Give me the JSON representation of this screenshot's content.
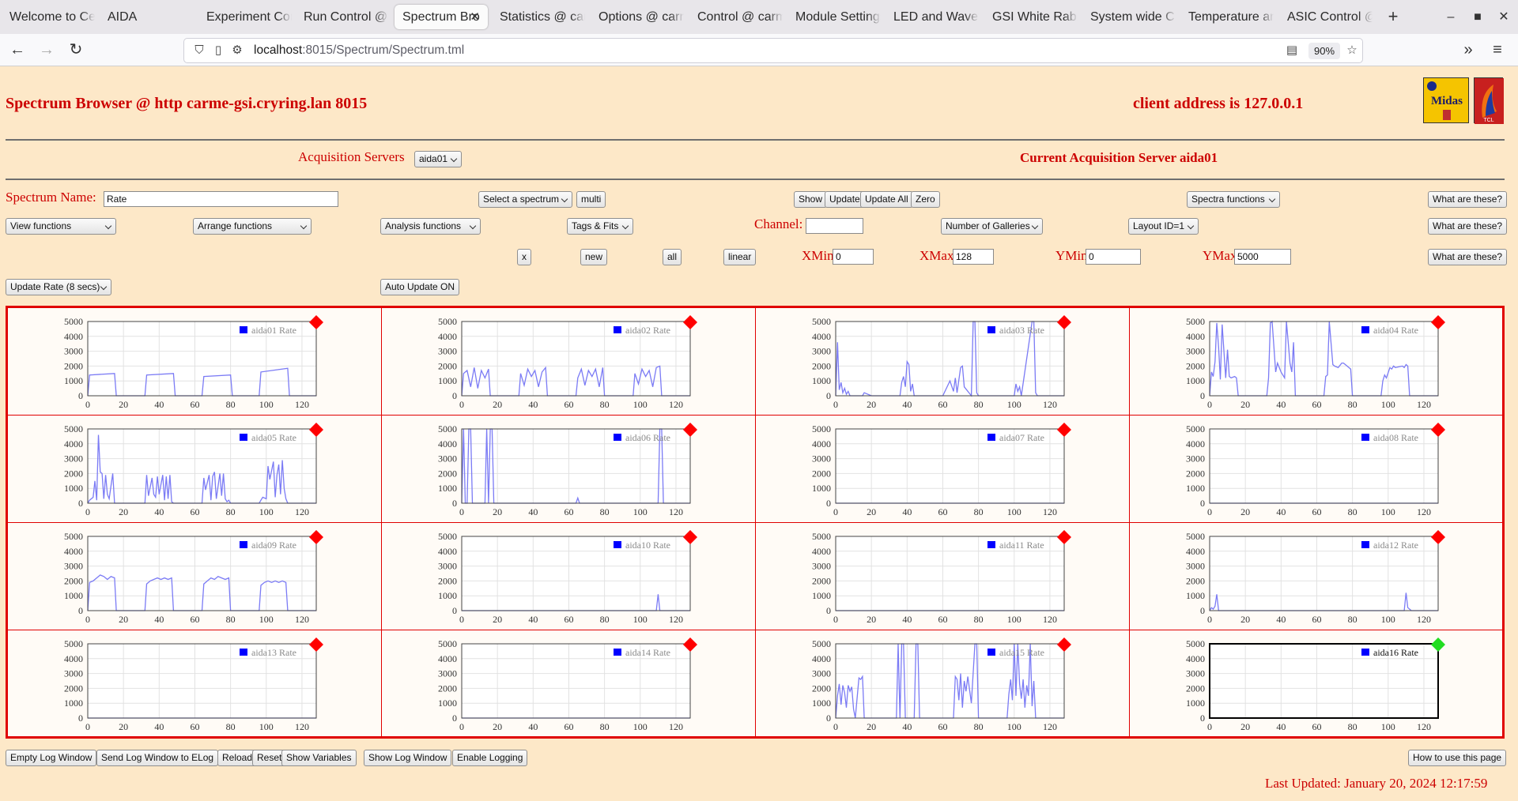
{
  "browser": {
    "tabs": [
      {
        "label": "Welcome to Ce",
        "active": false
      },
      {
        "label": "AIDA",
        "active": false
      },
      {
        "label": "Experiment Con",
        "active": false
      },
      {
        "label": "Run Control @",
        "active": false
      },
      {
        "label": "Spectrum Bro",
        "active": true
      },
      {
        "label": "Statistics @ car",
        "active": false
      },
      {
        "label": "Options @ carm",
        "active": false
      },
      {
        "label": "Control @ carm",
        "active": false
      },
      {
        "label": "Module Settings",
        "active": false
      },
      {
        "label": "LED and Wavefo",
        "active": false
      },
      {
        "label": "GSI White Rabb",
        "active": false
      },
      {
        "label": "System wide Ch",
        "active": false
      },
      {
        "label": "Temperature an",
        "active": false
      },
      {
        "label": "ASIC Control @",
        "active": false
      }
    ],
    "url_host": "localhost",
    "url_rest": ":8015/Spectrum/Spectrum.tml",
    "zoom": "90%"
  },
  "header": {
    "title": "Spectrum Browser @ http carme-gsi.cryring.lan 8015",
    "client_address": "client address is 127.0.0.1",
    "logo_text": "Midas",
    "logo2_text": "TCL"
  },
  "servers": {
    "label": "Acquisition Servers",
    "selected": "aida01",
    "current": "Current Acquisition Server aida01"
  },
  "controls": {
    "spectrum_name_label": "Spectrum Name:",
    "spectrum_name_value": "Rate",
    "select_spectrum": "Select a spectrum",
    "multi": "multi",
    "show": "Show",
    "update": "Update",
    "update_all": "Update All",
    "zero": "Zero",
    "spectra_functions": "Spectra functions",
    "what": "What are these?",
    "view_functions": "View functions",
    "arrange_functions": "Arrange functions",
    "analysis_functions": "Analysis functions",
    "tags_fits": "Tags & Fits",
    "channel_label": "Channel:",
    "channel_value": "",
    "number_of_galleries": "Number of Galleries",
    "layout_id": "Layout ID=1",
    "x_btn": "x",
    "new_btn": "new",
    "all_btn": "all",
    "linear_btn": "linear",
    "xmin_label": "XMin",
    "xmin_value": "0",
    "xmax_label": "XMax",
    "xmax_value": "128",
    "ymin_label": "YMin",
    "ymin_value": "0",
    "ymax_label": "YMax",
    "ymax_value": "5000",
    "update_rate": "Update Rate (8 secs)",
    "auto_update": "Auto Update ON"
  },
  "toolbar_icons": [
    "radiation-icon",
    "refresh-icon",
    "zoom-in-icon",
    "zoom-out-icon",
    "expand-y-icon",
    "shrink-y-icon",
    "arrow-left-icon",
    "arrow-right-icon",
    "arrow-up-icon",
    "arrow-down-icon"
  ],
  "footer": {
    "buttons": [
      "Empty Log Window",
      "Send Log Window to ELog",
      "Reload",
      "Reset",
      "Show Variables",
      "Show Log Window",
      "Enable Logging"
    ],
    "how_to": "How to use this page",
    "last_updated": "Last Updated: January 20, 2024 12:17:59"
  },
  "colors": {
    "page_bg": "#fde8c8",
    "accent_red": "#cc0000",
    "series_blue": "#7b7bf5",
    "legend_blue": "#0000ff",
    "status_red": "#ff0000",
    "status_green": "#22dd22"
  },
  "chart_data": [
    {
      "type": "line",
      "legend": "aida01 Rate",
      "status": "red",
      "xlim": [
        0,
        128
      ],
      "ylim": [
        0,
        5000
      ],
      "x_ticks": [
        0,
        20,
        40,
        60,
        80,
        100,
        120
      ],
      "y_ticks": [
        0,
        1000,
        2000,
        3000,
        4000,
        5000
      ],
      "x": [
        0,
        1,
        15,
        16,
        32,
        33,
        48,
        49,
        64,
        65,
        80,
        81,
        96,
        97,
        112,
        113,
        128
      ],
      "values": [
        0,
        1400,
        1500,
        0,
        0,
        1400,
        1500,
        0,
        0,
        1300,
        1400,
        0,
        0,
        1600,
        1850,
        0,
        0
      ]
    },
    {
      "type": "line",
      "legend": "aida02 Rate",
      "status": "red",
      "xlim": [
        0,
        128
      ],
      "ylim": [
        0,
        5000
      ],
      "x_ticks": [
        0,
        20,
        40,
        60,
        80,
        100,
        120
      ],
      "y_ticks": [
        0,
        1000,
        2000,
        3000,
        4000,
        5000
      ],
      "x": [
        0,
        1,
        3,
        5,
        7,
        9,
        11,
        13,
        15,
        16,
        32,
        33,
        35,
        37,
        39,
        41,
        43,
        45,
        47,
        48,
        64,
        65,
        67,
        69,
        71,
        73,
        75,
        77,
        79,
        80,
        96,
        97,
        99,
        101,
        103,
        105,
        107,
        109,
        111,
        112,
        128
      ],
      "values": [
        0,
        1500,
        1700,
        600,
        1900,
        500,
        1700,
        1200,
        1800,
        0,
        0,
        1500,
        700,
        1800,
        1300,
        1700,
        600,
        1600,
        1900,
        0,
        0,
        1200,
        1800,
        700,
        1700,
        1300,
        1800,
        600,
        1900,
        0,
        0,
        1500,
        800,
        1800,
        1300,
        1700,
        600,
        1900,
        2000,
        0,
        0
      ]
    },
    {
      "type": "line",
      "legend": "aida03 Rate",
      "status": "red",
      "xlim": [
        0,
        128
      ],
      "ylim": [
        0,
        5000
      ],
      "x_ticks": [
        0,
        20,
        40,
        60,
        80,
        100,
        120
      ],
      "y_ticks": [
        0,
        1000,
        2000,
        3000,
        4000,
        5000
      ],
      "x": [
        0,
        1,
        2,
        3,
        4,
        5,
        6,
        7,
        8,
        15,
        16,
        20,
        36,
        37,
        38,
        39,
        40,
        41,
        42,
        43,
        44,
        60,
        64,
        66,
        67,
        68,
        70,
        71,
        72,
        76,
        77,
        78,
        79,
        80,
        81,
        84,
        100,
        101,
        102,
        103,
        104,
        110,
        111,
        112,
        113,
        128
      ],
      "values": [
        0,
        3600,
        400,
        900,
        200,
        500,
        100,
        300,
        0,
        0,
        200,
        0,
        0,
        900,
        1300,
        600,
        2300,
        2100,
        300,
        800,
        0,
        0,
        1000,
        300,
        1200,
        200,
        1900,
        2000,
        600,
        0,
        5000,
        5000,
        200,
        0,
        0,
        0,
        0,
        800,
        300,
        600,
        0,
        5000,
        5000,
        200,
        0,
        0
      ]
    },
    {
      "type": "line",
      "legend": "aida04 Rate",
      "status": "red",
      "xlim": [
        0,
        128
      ],
      "ylim": [
        0,
        5000
      ],
      "x_ticks": [
        0,
        20,
        40,
        60,
        80,
        100,
        120
      ],
      "y_ticks": [
        0,
        1000,
        2000,
        3000,
        4000,
        5000
      ],
      "x": [
        0,
        1,
        2,
        3,
        4,
        5,
        6,
        7,
        9,
        10,
        11,
        12,
        14,
        15,
        16,
        32,
        33,
        34,
        35,
        37,
        38,
        40,
        42,
        43,
        45,
        46,
        47,
        48,
        64,
        65,
        66,
        67,
        69,
        70,
        72,
        74,
        75,
        78,
        79,
        80,
        96,
        97,
        98,
        99,
        101,
        102,
        103,
        104,
        108,
        109,
        110,
        111,
        112,
        128
      ],
      "values": [
        0,
        1600,
        1300,
        2300,
        4900,
        3300,
        1100,
        4800,
        1200,
        3100,
        1300,
        1200,
        1300,
        1200,
        0,
        0,
        1200,
        4900,
        5000,
        1600,
        2200,
        1600,
        1200,
        5000,
        2200,
        1600,
        3600,
        0,
        0,
        1300,
        1400,
        5000,
        2100,
        2000,
        1900,
        2200,
        2200,
        1900,
        1800,
        0,
        0,
        1000,
        1400,
        1200,
        1900,
        1800,
        2000,
        1900,
        2000,
        1900,
        2100,
        2000,
        0,
        0
      ]
    },
    {
      "type": "line",
      "legend": "aida05 Rate",
      "status": "red",
      "xlim": [
        0,
        128
      ],
      "ylim": [
        0,
        5000
      ],
      "x_ticks": [
        0,
        20,
        40,
        60,
        80,
        100,
        120
      ],
      "y_ticks": [
        0,
        1000,
        2000,
        3000,
        4000,
        5000
      ],
      "x": [
        0,
        1,
        3,
        4,
        5,
        6,
        7,
        8,
        9,
        10,
        11,
        12,
        14,
        15,
        16,
        32,
        33,
        34,
        36,
        37,
        38,
        39,
        40,
        42,
        43,
        44,
        45,
        46,
        47,
        48,
        64,
        65,
        66,
        68,
        69,
        70,
        71,
        72,
        74,
        75,
        76,
        77,
        78,
        79,
        80,
        96,
        97,
        98,
        100,
        101,
        102,
        104,
        105,
        106,
        107,
        108,
        109,
        110,
        111,
        112,
        128
      ],
      "values": [
        0,
        200,
        400,
        1500,
        200,
        4600,
        2100,
        2000,
        300,
        1900,
        600,
        300,
        2000,
        0,
        0,
        0,
        1900,
        500,
        1700,
        600,
        400,
        1800,
        600,
        1900,
        200,
        1800,
        300,
        1900,
        100,
        0,
        0,
        1700,
        900,
        1900,
        200,
        1800,
        2100,
        300,
        2000,
        500,
        2000,
        300,
        100,
        200,
        0,
        0,
        200,
        400,
        300,
        2500,
        1600,
        2800,
        400,
        1900,
        2600,
        600,
        2900,
        1000,
        300,
        0,
        0
      ]
    },
    {
      "type": "line",
      "legend": "aida06 Rate",
      "status": "red",
      "xlim": [
        0,
        128
      ],
      "ylim": [
        0,
        5000
      ],
      "x_ticks": [
        0,
        20,
        40,
        60,
        80,
        100,
        120
      ],
      "y_ticks": [
        0,
        1000,
        2000,
        3000,
        4000,
        5000
      ],
      "x": [
        0,
        1,
        2,
        3,
        4,
        5,
        6,
        13,
        14,
        15,
        16,
        17,
        18,
        19,
        64,
        65,
        66,
        67,
        110,
        111,
        112,
        113,
        128
      ],
      "values": [
        0,
        5000,
        0,
        0,
        5000,
        5000,
        0,
        0,
        5000,
        0,
        5000,
        5000,
        0,
        0,
        0,
        350,
        0,
        0,
        0,
        5000,
        5000,
        0,
        0
      ]
    },
    {
      "type": "line",
      "legend": "aida07 Rate",
      "status": "red",
      "xlim": [
        0,
        128
      ],
      "ylim": [
        0,
        5000
      ],
      "x_ticks": [
        0,
        20,
        40,
        60,
        80,
        100,
        120
      ],
      "y_ticks": [
        0,
        1000,
        2000,
        3000,
        4000,
        5000
      ],
      "x": [
        0,
        128
      ],
      "values": [
        0,
        0
      ]
    },
    {
      "type": "line",
      "legend": "aida08 Rate",
      "status": "red",
      "xlim": [
        0,
        128
      ],
      "ylim": [
        0,
        5000
      ],
      "x_ticks": [
        0,
        20,
        40,
        60,
        80,
        100,
        120
      ],
      "y_ticks": [
        0,
        1000,
        2000,
        3000,
        4000,
        5000
      ],
      "x": [
        0,
        128
      ],
      "values": [
        0,
        0
      ]
    },
    {
      "type": "line",
      "legend": "aida09 Rate",
      "status": "red",
      "xlim": [
        0,
        128
      ],
      "ylim": [
        0,
        5000
      ],
      "x_ticks": [
        0,
        20,
        40,
        60,
        80,
        100,
        120
      ],
      "y_ticks": [
        0,
        1000,
        2000,
        3000,
        4000,
        5000
      ],
      "x": [
        0,
        1,
        3,
        5,
        7,
        9,
        11,
        13,
        15,
        16,
        32,
        33,
        35,
        37,
        39,
        41,
        43,
        45,
        47,
        48,
        64,
        65,
        67,
        69,
        71,
        73,
        75,
        77,
        79,
        80,
        96,
        97,
        99,
        101,
        103,
        105,
        107,
        109,
        111,
        112,
        128
      ],
      "values": [
        0,
        1900,
        2000,
        2200,
        2400,
        2300,
        2100,
        2300,
        2200,
        0,
        0,
        1800,
        2000,
        2100,
        2200,
        2100,
        2200,
        2100,
        2200,
        0,
        0,
        1800,
        2000,
        2200,
        2100,
        2300,
        2200,
        2100,
        2200,
        0,
        0,
        1700,
        1900,
        2000,
        1900,
        2000,
        1900,
        2000,
        1900,
        0,
        0
      ]
    },
    {
      "type": "line",
      "legend": "aida10 Rate",
      "status": "red",
      "xlim": [
        0,
        128
      ],
      "ylim": [
        0,
        5000
      ],
      "x_ticks": [
        0,
        20,
        40,
        60,
        80,
        100,
        120
      ],
      "y_ticks": [
        0,
        1000,
        2000,
        3000,
        4000,
        5000
      ],
      "x": [
        0,
        109,
        110,
        111,
        128
      ],
      "values": [
        0,
        0,
        1100,
        0,
        0
      ]
    },
    {
      "type": "line",
      "legend": "aida11 Rate",
      "status": "red",
      "xlim": [
        0,
        128
      ],
      "ylim": [
        0,
        5000
      ],
      "x_ticks": [
        0,
        20,
        40,
        60,
        80,
        100,
        120
      ],
      "y_ticks": [
        0,
        1000,
        2000,
        3000,
        4000,
        5000
      ],
      "x": [
        0,
        128
      ],
      "values": [
        0,
        0
      ]
    },
    {
      "type": "line",
      "legend": "aida12 Rate",
      "status": "red",
      "xlim": [
        0,
        128
      ],
      "ylim": [
        0,
        5000
      ],
      "x_ticks": [
        0,
        20,
        40,
        60,
        80,
        100,
        120
      ],
      "y_ticks": [
        0,
        1000,
        2000,
        3000,
        4000,
        5000
      ],
      "x": [
        0,
        1,
        2,
        3,
        4,
        5,
        6,
        109,
        110,
        111,
        112,
        113,
        128
      ],
      "values": [
        0,
        200,
        100,
        300,
        1100,
        0,
        0,
        0,
        1200,
        200,
        100,
        0,
        0
      ]
    },
    {
      "type": "line",
      "legend": "aida13 Rate",
      "status": "red",
      "xlim": [
        0,
        128
      ],
      "ylim": [
        0,
        5000
      ],
      "x_ticks": [
        0,
        20,
        40,
        60,
        80,
        100,
        120
      ],
      "y_ticks": [
        0,
        1000,
        2000,
        3000,
        4000,
        5000
      ],
      "x": [
        0,
        128
      ],
      "values": [
        0,
        0
      ]
    },
    {
      "type": "line",
      "legend": "aida14 Rate",
      "status": "red",
      "xlim": [
        0,
        128
      ],
      "ylim": [
        0,
        5000
      ],
      "x_ticks": [
        0,
        20,
        40,
        60,
        80,
        100,
        120
      ],
      "y_ticks": [
        0,
        1000,
        2000,
        3000,
        4000,
        5000
      ],
      "x": [
        0,
        128
      ],
      "values": [
        0,
        0
      ]
    },
    {
      "type": "line",
      "legend": "aida15 Rate",
      "status": "red",
      "xlim": [
        0,
        128
      ],
      "ylim": [
        0,
        5000
      ],
      "x_ticks": [
        0,
        20,
        40,
        60,
        80,
        100,
        120
      ],
      "y_ticks": [
        0,
        1000,
        2000,
        3000,
        4000,
        5000
      ],
      "x": [
        0,
        1,
        2,
        3,
        4,
        5,
        6,
        7,
        8,
        9,
        10,
        11,
        13,
        14,
        15,
        16,
        34,
        35,
        36,
        37,
        38,
        39,
        40,
        44,
        45,
        46,
        47,
        48,
        66,
        67,
        68,
        69,
        70,
        71,
        72,
        73,
        74,
        76,
        78,
        79,
        80,
        81,
        96,
        97,
        98,
        99,
        100,
        101,
        102,
        103,
        104,
        105,
        106,
        107,
        108,
        109,
        110,
        111,
        112,
        128
      ],
      "values": [
        0,
        1500,
        2300,
        900,
        2200,
        1700,
        700,
        2200,
        1800,
        2100,
        600,
        0,
        2700,
        2600,
        2800,
        0,
        0,
        5000,
        0,
        5000,
        5000,
        0,
        0,
        0,
        5000,
        5000,
        0,
        0,
        0,
        2800,
        2600,
        1200,
        3000,
        700,
        2500,
        1800,
        2800,
        1000,
        5000,
        5000,
        0,
        0,
        0,
        1600,
        2600,
        1200,
        5000,
        1500,
        5000,
        2300,
        1300,
        2600,
        700,
        2200,
        1500,
        5000,
        800,
        2500,
        0,
        0
      ]
    },
    {
      "type": "line",
      "legend": "aida16 Rate",
      "status": "green",
      "xlim": [
        0,
        128
      ],
      "ylim": [
        0,
        5000
      ],
      "x_ticks": [
        0,
        20,
        40,
        60,
        80,
        100,
        120
      ],
      "y_ticks": [
        0,
        1000,
        2000,
        3000,
        4000,
        5000
      ],
      "x": [
        0,
        128
      ],
      "values": [
        0,
        0
      ]
    }
  ]
}
